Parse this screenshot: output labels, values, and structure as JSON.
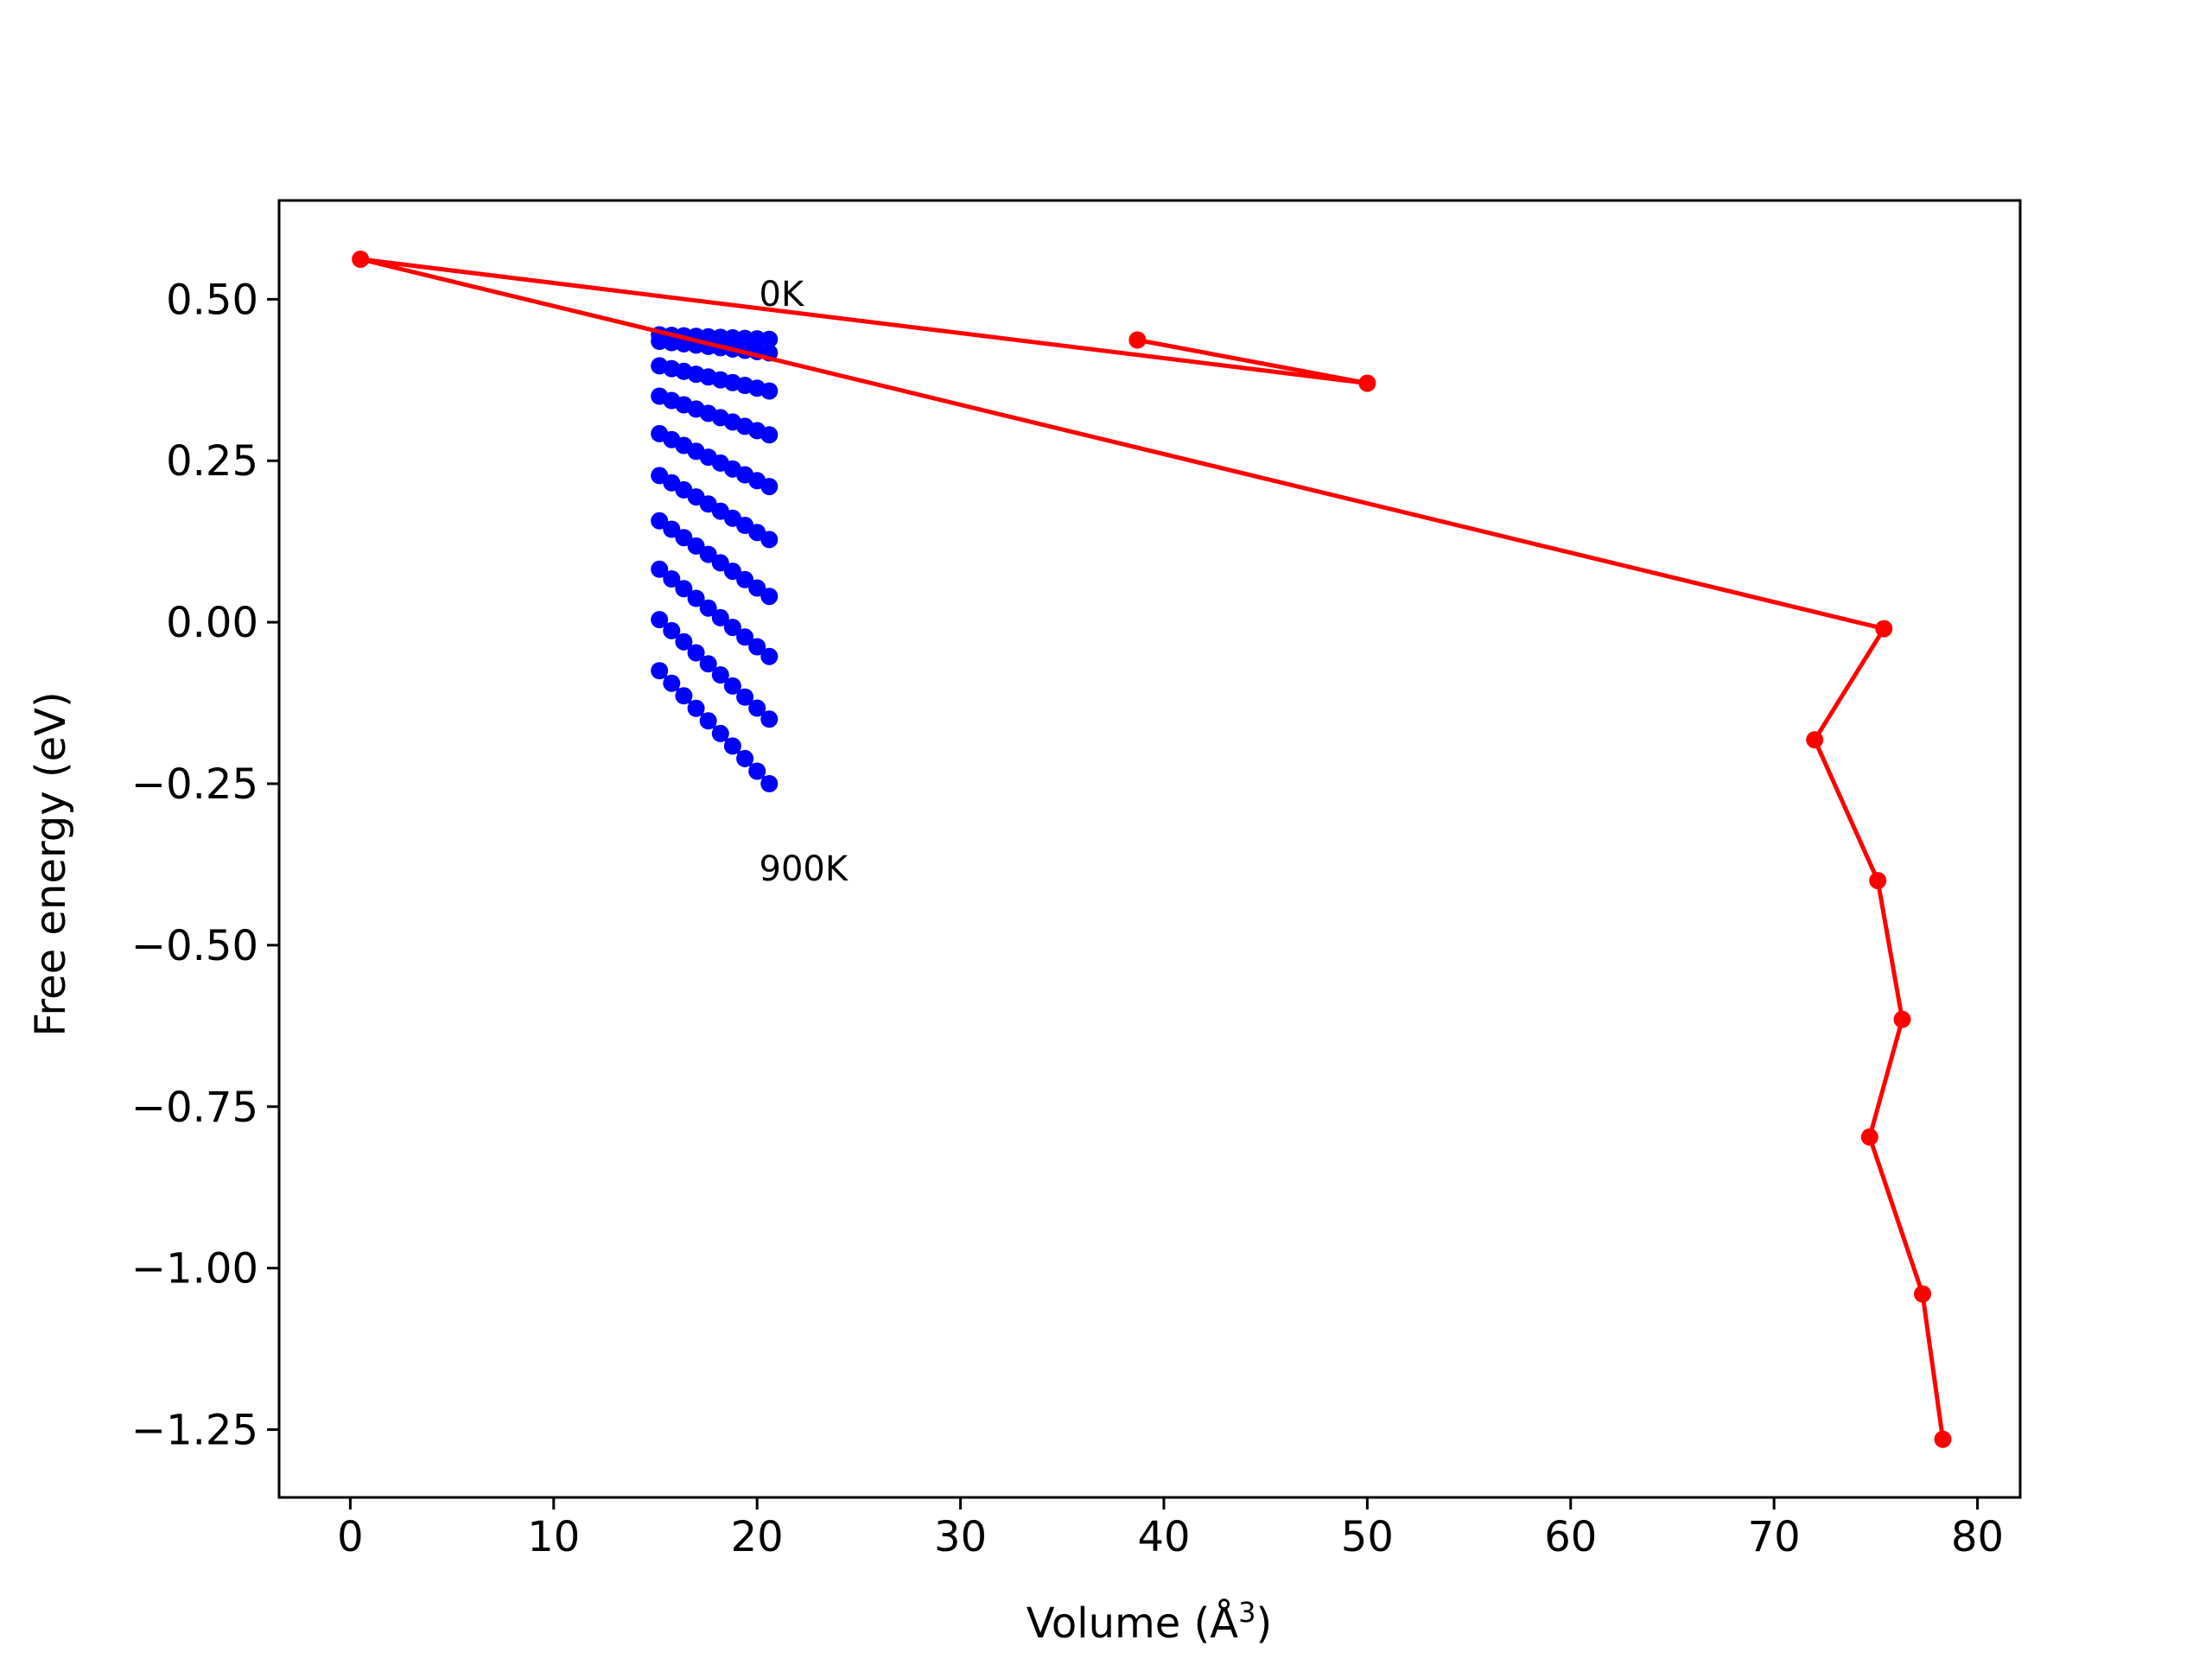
{
  "chart_data": {
    "type": "scatter",
    "title": "",
    "xlabel": "Volume (Å",
    "xlabel_sup": "3",
    "xlabel_close": ")",
    "ylabel": "Free energy (eV)",
    "xlim": [
      -3.5,
      82.1
    ],
    "ylim": [
      -1.355,
      0.653
    ],
    "grid": false,
    "xticks": [
      0,
      10,
      20,
      30,
      40,
      50,
      60,
      70,
      80
    ],
    "xtick_labels": [
      "0",
      "10",
      "20",
      "30",
      "40",
      "50",
      "60",
      "70",
      "80"
    ],
    "yticks": [
      0.5,
      0.25,
      0.0,
      -0.25,
      -0.5,
      -0.75,
      -1.0,
      -1.25
    ],
    "ytick_labels": [
      "0.50",
      "0.25",
      "0.00",
      "−0.25",
      "−0.50",
      "−0.75",
      "−1.00",
      "−1.25"
    ],
    "annotations": [
      {
        "text": "0K",
        "x": 20.1,
        "y": 0.49
      },
      {
        "text": "900K",
        "x": 20.1,
        "y": -0.4
      }
    ],
    "series": [
      {
        "color": "#0000ff",
        "style": "line-markers",
        "x_grid": [
          15.2,
          15.8,
          16.4,
          17.0,
          17.6,
          18.2,
          18.8,
          19.4,
          20.0,
          20.6
        ],
        "curves": [
          {
            "start": 0.445,
            "end": 0.438
          },
          {
            "start": 0.435,
            "end": 0.417
          },
          {
            "start": 0.397,
            "end": 0.358
          },
          {
            "start": 0.35,
            "end": 0.29
          },
          {
            "start": 0.292,
            "end": 0.21
          },
          {
            "start": 0.227,
            "end": 0.128
          },
          {
            "start": 0.157,
            "end": 0.04
          },
          {
            "start": 0.082,
            "end": -0.053
          },
          {
            "start": 0.004,
            "end": -0.15
          },
          {
            "start": -0.075,
            "end": -0.25
          }
        ]
      },
      {
        "color": "#ff0000",
        "style": "line-markers",
        "points": [
          [
            38.7,
            0.437
          ],
          [
            50.0,
            0.37
          ],
          [
            0.5,
            0.562
          ],
          [
            75.4,
            -0.01
          ],
          [
            72.0,
            -0.182
          ],
          [
            75.1,
            -0.4
          ],
          [
            76.3,
            -0.615
          ],
          [
            74.7,
            -0.797
          ],
          [
            77.3,
            -1.04
          ],
          [
            78.3,
            -1.265
          ]
        ]
      }
    ]
  }
}
